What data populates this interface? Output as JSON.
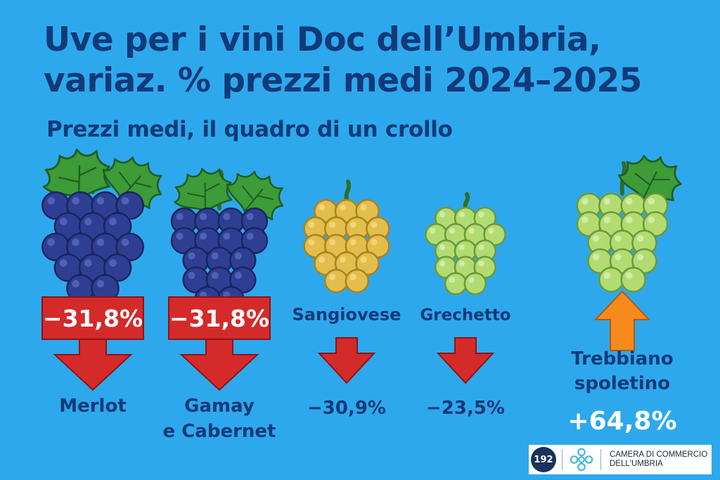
{
  "title_line1": "Uve per i vini Doc dell’Umbria,",
  "title_line2": "variaz. % prezzi medi 2024–2025",
  "subtitle": "Prezzi medi, il quadro di un crollo",
  "colors": {
    "background": "#2ea8ec",
    "text": "#103a7a",
    "decrease": "#d42a2a",
    "increase": "#f78a1c",
    "grape_dark": "#2e3f93",
    "grape_yellow": "#e4be4c",
    "grape_green": "#b2dc72",
    "leaf": "#3d9b38"
  },
  "chart_data": {
    "type": "bar",
    "title": "Uve per i vini Doc dell’Umbria, variaz. % prezzi medi 2024–2025",
    "subtitle": "Prezzi medi, il quadro di un crollo",
    "categories": [
      "Merlot",
      "Gamay e Cabernet",
      "Sangiovese",
      "Grechetto",
      "Trebbiano spoletino"
    ],
    "values": [
      -31.8,
      -31.8,
      -30.9,
      -23.5,
      64.8
    ],
    "unit": "%",
    "items": [
      {
        "name_lines": [
          "Merlot"
        ],
        "value": -31.8,
        "label": "−31,8%",
        "grape": "dark",
        "style": "badge"
      },
      {
        "name_lines": [
          "Gamay",
          "e Cabernet"
        ],
        "value": -31.8,
        "label": "−31,8%",
        "grape": "dark",
        "style": "badge"
      },
      {
        "name_lines": [
          "Sangiovese"
        ],
        "value": -30.9,
        "label": "−30,9%",
        "grape": "yellow",
        "style": "plain"
      },
      {
        "name_lines": [
          "Grechetto"
        ],
        "value": -23.5,
        "label": "−23,5%",
        "grape": "green",
        "style": "plain"
      },
      {
        "name_lines": [
          "Trebbiano",
          "spoletino"
        ],
        "value": 64.8,
        "label": "+64,8%",
        "grape": "green",
        "style": "up"
      }
    ]
  },
  "logo": {
    "badge_text": "192",
    "org_line1": "CAMERA DI COMMERCIO",
    "org_line2": "DELL'UMBRIA"
  }
}
